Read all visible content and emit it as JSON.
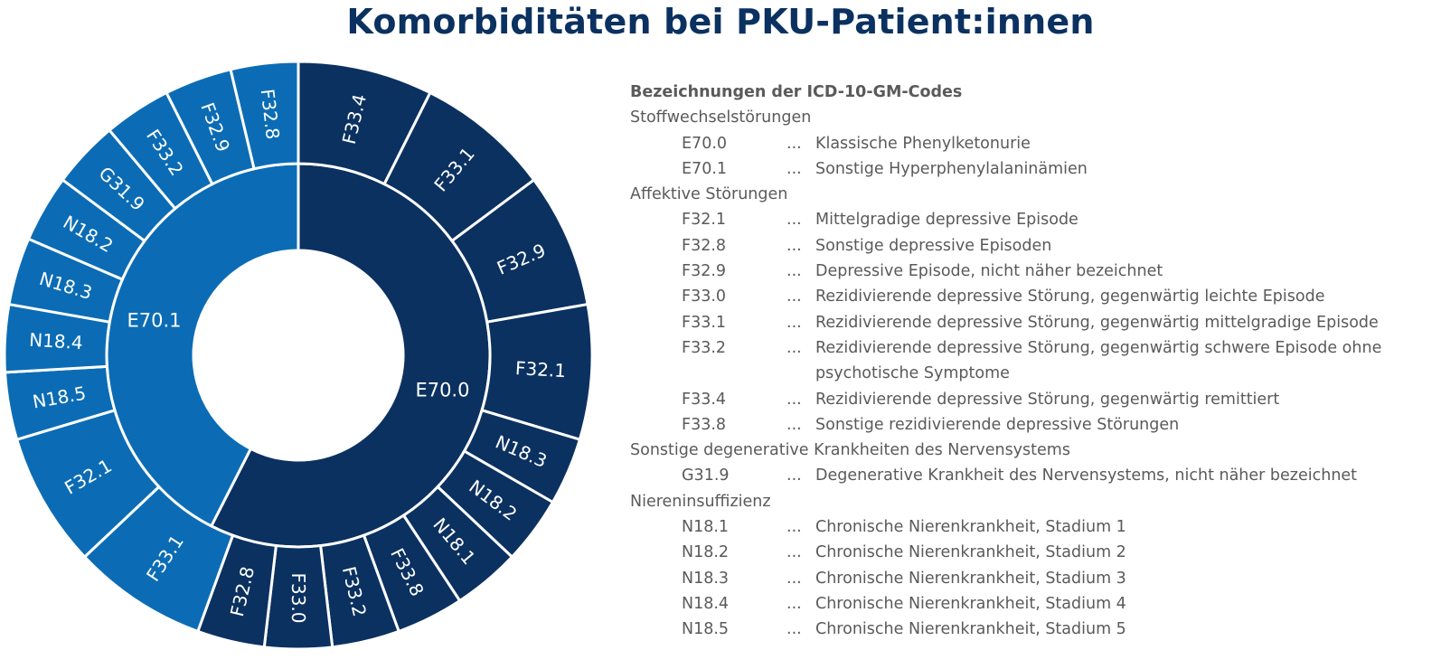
{
  "title": "Komorbiditäten bei PKU-Patient:innen",
  "colors": {
    "e700": "#0b3160",
    "e701": "#0b6cb5",
    "title": "#0b3160",
    "legend_text": "#5a5a5a"
  },
  "chart_data": {
    "type": "sunburst",
    "title": "Komorbiditäten bei PKU-Patient:innen",
    "inner": [
      {
        "label": "E70.0",
        "value": 57.5,
        "color": "#0b3160"
      },
      {
        "label": "E70.1",
        "value": 42.5,
        "color": "#0b6cb5"
      }
    ],
    "outer": [
      {
        "parent": "E70.0",
        "label": "F33.4",
        "value": 7.0
      },
      {
        "parent": "E70.0",
        "label": "F33.1",
        "value": 7.0
      },
      {
        "parent": "E70.0",
        "label": "F32.9",
        "value": 7.0
      },
      {
        "parent": "E70.0",
        "label": "F32.1",
        "value": 7.0
      },
      {
        "parent": "E70.0",
        "label": "N18.3",
        "value": 3.5
      },
      {
        "parent": "E70.0",
        "label": "N18.2",
        "value": 3.5
      },
      {
        "parent": "E70.0",
        "label": "N18.1",
        "value": 3.5
      },
      {
        "parent": "E70.0",
        "label": "F33.8",
        "value": 3.5
      },
      {
        "parent": "E70.0",
        "label": "F33.2",
        "value": 3.5
      },
      {
        "parent": "E70.0",
        "label": "F33.0",
        "value": 3.5
      },
      {
        "parent": "E70.0",
        "label": "F32.8",
        "value": 3.5
      },
      {
        "parent": "E70.1",
        "label": "F33.1",
        "value": 7.0
      },
      {
        "parent": "E70.1",
        "label": "F32.1",
        "value": 7.0
      },
      {
        "parent": "E70.1",
        "label": "N18.5",
        "value": 3.5
      },
      {
        "parent": "E70.1",
        "label": "N18.4",
        "value": 3.5
      },
      {
        "parent": "E70.1",
        "label": "N18.3",
        "value": 3.5
      },
      {
        "parent": "E70.1",
        "label": "N18.2",
        "value": 3.5
      },
      {
        "parent": "E70.1",
        "label": "G31.9",
        "value": 3.5
      },
      {
        "parent": "E70.1",
        "label": "F33.2",
        "value": 3.5
      },
      {
        "parent": "E70.1",
        "label": "F32.9",
        "value": 3.5
      },
      {
        "parent": "E70.1",
        "label": "F32.8",
        "value": 3.5
      }
    ]
  },
  "legend": {
    "heading": "Bezeichnungen der ICD-10-GM-Codes",
    "groups": [
      {
        "name": "Stoffwechselstörungen",
        "items": [
          {
            "code": "E70.0",
            "sep": "...",
            "desc": "Klassische Phenylketonurie"
          },
          {
            "code": "E70.1",
            "sep": "...",
            "desc": "Sonstige Hyperphenylalaninämien"
          }
        ]
      },
      {
        "name": "Affektive Störungen",
        "items": [
          {
            "code": "F32.1",
            "sep": "...",
            "desc": "Mittelgradige depressive Episode"
          },
          {
            "code": "F32.8",
            "sep": "...",
            "desc": "Sonstige depressive Episoden"
          },
          {
            "code": "F32.9",
            "sep": "...",
            "desc": "Depressive Episode, nicht näher bezeichnet"
          },
          {
            "code": "F33.0",
            "sep": "...",
            "desc": "Rezidivierende depressive Störung, gegenwärtig leichte Episode"
          },
          {
            "code": "F33.1",
            "sep": "...",
            "desc": "Rezidivierende depressive Störung, gegenwärtig mittelgradige Episode"
          },
          {
            "code": "F33.2",
            "sep": "...",
            "desc": "Rezidivierende depressive Störung, gegenwärtig schwere Episode ohne psychotische Symptome"
          },
          {
            "code": "F33.4",
            "sep": "...",
            "desc": "Rezidivierende depressive Störung, gegenwärtig remittiert"
          },
          {
            "code": "F33.8",
            "sep": "...",
            "desc": "Sonstige rezidivierende depressive Störungen"
          }
        ]
      },
      {
        "name": "Sonstige degenerative Krankheiten des Nervensystems",
        "items": [
          {
            "code": "G31.9",
            "sep": "...",
            "desc": "Degenerative Krankheit des Nervensystems, nicht näher bezeichnet"
          }
        ]
      },
      {
        "name": "Niereninsuffizienz",
        "items": [
          {
            "code": "N18.1",
            "sep": "...",
            "desc": "Chronische Nierenkrankheit, Stadium 1"
          },
          {
            "code": "N18.2",
            "sep": "...",
            "desc": "Chronische Nierenkrankheit, Stadium 2"
          },
          {
            "code": "N18.3",
            "sep": "...",
            "desc": "Chronische Nierenkrankheit, Stadium 3"
          },
          {
            "code": "N18.4",
            "sep": "...",
            "desc": "Chronische Nierenkrankheit, Stadium 4"
          },
          {
            "code": "N18.5",
            "sep": "...",
            "desc": "Chronische Nierenkrankheit, Stadium 5"
          }
        ]
      }
    ]
  }
}
